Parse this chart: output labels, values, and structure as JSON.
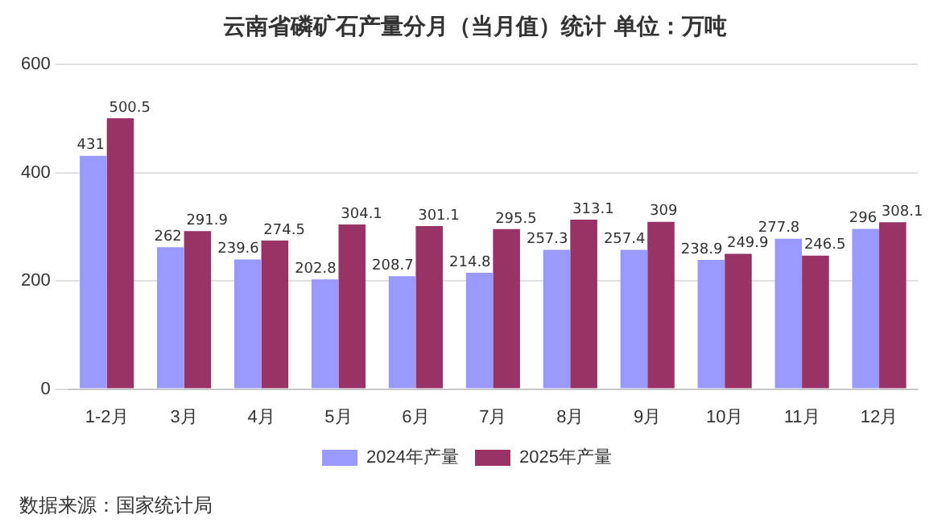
{
  "chart_data": {
    "type": "bar",
    "title": "云南省磷矿石产量分月（当月值）统计  单位：万吨",
    "categories": [
      "1-2月",
      "3月",
      "4月",
      "5月",
      "6月",
      "7月",
      "8月",
      "9月",
      "10月",
      "11月",
      "12月"
    ],
    "series": [
      {
        "name": "2024年产量",
        "color": "#9999ff",
        "values": [
          431,
          262,
          239.6,
          202.8,
          208.7,
          214.8,
          257.3,
          257.4,
          238.9,
          277.8,
          296
        ]
      },
      {
        "name": "2025年产量",
        "color": "#993366",
        "values": [
          500.5,
          291.9,
          274.5,
          304.1,
          301.1,
          295.5,
          313.1,
          309,
          249.9,
          246.5,
          308.1
        ]
      }
    ],
    "ylim": [
      0,
      600
    ],
    "yticks": [
      0,
      200,
      400,
      600
    ],
    "grid": "y",
    "legend": "bottom",
    "data_labels": true,
    "annotations": [
      "数据来源：国家统计局"
    ]
  }
}
